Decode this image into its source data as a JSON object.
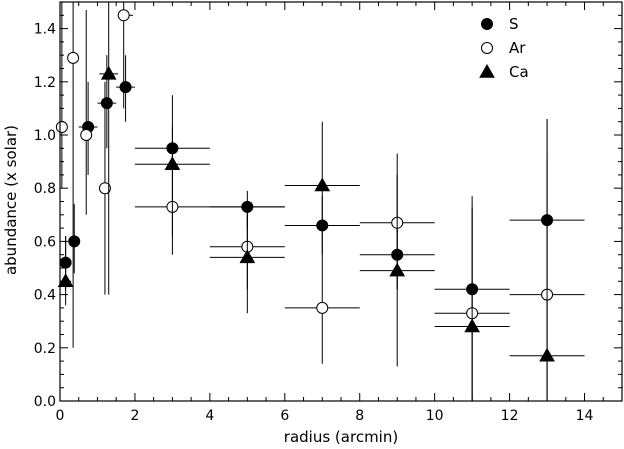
{
  "chart_data": {
    "type": "scatter",
    "xlabel": "radius (arcmin)",
    "ylabel": "abundance  (x solar)",
    "xlim": [
      0,
      15
    ],
    "ylim": [
      0,
      1.5
    ],
    "x_ticks": [
      "0",
      "2",
      "4",
      "6",
      "8",
      "10",
      "12",
      "14"
    ],
    "y_ticks": [
      "0.0",
      "0.2",
      "0.4",
      "0.6",
      "0.8",
      "1.0",
      "1.2",
      "1.4"
    ],
    "legend_position": "top-right",
    "series": [
      {
        "name": "S",
        "marker": "filled-circle",
        "points": [
          {
            "x": 0.15,
            "xlo": 0.0,
            "xhi": 0.3,
            "y": 0.52,
            "ylo": 0.42,
            "yhi": 0.62
          },
          {
            "x": 0.38,
            "xlo": 0.3,
            "xhi": 0.5,
            "y": 0.6,
            "ylo": 0.48,
            "yhi": 0.74
          },
          {
            "x": 0.75,
            "xlo": 0.5,
            "xhi": 1.0,
            "y": 1.03,
            "ylo": 0.85,
            "yhi": 1.2
          },
          {
            "x": 1.25,
            "xlo": 1.0,
            "xhi": 1.5,
            "y": 1.12,
            "ylo": 0.95,
            "yhi": 1.3
          },
          {
            "x": 1.75,
            "xlo": 1.5,
            "xhi": 2.0,
            "y": 1.18,
            "ylo": 1.05,
            "yhi": 1.3
          },
          {
            "x": 3.0,
            "xlo": 2.0,
            "xhi": 4.0,
            "y": 0.95,
            "ylo": 0.87,
            "yhi": 1.03
          },
          {
            "x": 5.0,
            "xlo": 4.0,
            "xhi": 6.0,
            "y": 0.73,
            "ylo": 0.65,
            "yhi": 0.79
          },
          {
            "x": 7.0,
            "xlo": 6.0,
            "xhi": 8.0,
            "y": 0.66,
            "ylo": 0.55,
            "yhi": 0.77
          },
          {
            "x": 9.0,
            "xlo": 8.0,
            "xhi": 10.0,
            "y": 0.55,
            "ylo": 0.42,
            "yhi": 0.66
          },
          {
            "x": 11.0,
            "xlo": 10.0,
            "xhi": 12.0,
            "y": 0.42,
            "ylo": 0.0,
            "yhi": 0.77
          },
          {
            "x": 13.0,
            "xlo": 12.0,
            "xhi": 14.0,
            "y": 0.68,
            "ylo": 0.0,
            "yhi": 1.06
          }
        ]
      },
      {
        "name": "Ar",
        "marker": "open-circle",
        "points": [
          {
            "x": 0.05,
            "xlo": 0.0,
            "xhi": 0.15,
            "y": 1.03,
            "ylo": 0.8,
            "yhi": 1.5
          },
          {
            "x": 0.35,
            "xlo": 0.25,
            "xhi": 0.45,
            "y": 1.29,
            "ylo": 0.2,
            "yhi": 1.5
          },
          {
            "x": 0.7,
            "xlo": 0.55,
            "xhi": 0.85,
            "y": 1.0,
            "ylo": 0.7,
            "yhi": 1.47
          },
          {
            "x": 1.2,
            "xlo": 1.05,
            "xhi": 1.35,
            "y": 0.8,
            "ylo": 0.4,
            "yhi": 1.2
          },
          {
            "x": 1.7,
            "xlo": 1.55,
            "xhi": 1.95,
            "y": 1.45,
            "ylo": 1.1,
            "yhi": 1.5
          },
          {
            "x": 3.0,
            "xlo": 2.0,
            "xhi": 6.0,
            "y": 0.73,
            "ylo": 0.55,
            "yhi": 0.92
          },
          {
            "x": 5.0,
            "xlo": 4.0,
            "xhi": 6.0,
            "y": 0.58,
            "ylo": 0.42,
            "yhi": 0.7
          },
          {
            "x": 7.0,
            "xlo": 6.0,
            "xhi": 8.0,
            "y": 0.35,
            "ylo": 0.14,
            "yhi": 0.56
          },
          {
            "x": 9.0,
            "xlo": 8.0,
            "xhi": 10.0,
            "y": 0.67,
            "ylo": 0.42,
            "yhi": 0.93
          },
          {
            "x": 11.0,
            "xlo": 10.0,
            "xhi": 12.0,
            "y": 0.33,
            "ylo": 0.0,
            "yhi": 0.73
          },
          {
            "x": 13.0,
            "xlo": 12.0,
            "xhi": 14.0,
            "y": 0.4,
            "ylo": 0.0,
            "yhi": 0.93
          }
        ]
      },
      {
        "name": "Ca",
        "marker": "filled-triangle",
        "points": [
          {
            "x": 0.15,
            "xlo": 0.0,
            "xhi": 0.3,
            "y": 0.45,
            "ylo": 0.36,
            "yhi": 0.62
          },
          {
            "x": 1.3,
            "xlo": 1.05,
            "xhi": 1.55,
            "y": 1.23,
            "ylo": 0.4,
            "yhi": 1.5
          },
          {
            "x": 3.0,
            "xlo": 2.0,
            "xhi": 4.0,
            "y": 0.89,
            "ylo": 0.62,
            "yhi": 1.15
          },
          {
            "x": 5.0,
            "xlo": 4.0,
            "xhi": 6.0,
            "y": 0.54,
            "ylo": 0.33,
            "yhi": 0.73
          },
          {
            "x": 7.0,
            "xlo": 6.0,
            "xhi": 8.0,
            "y": 0.81,
            "ylo": 0.56,
            "yhi": 1.05
          },
          {
            "x": 9.0,
            "xlo": 8.0,
            "xhi": 10.0,
            "y": 0.49,
            "ylo": 0.13,
            "yhi": 0.85
          },
          {
            "x": 11.0,
            "xlo": 10.0,
            "xhi": 12.0,
            "y": 0.28,
            "ylo": 0.0,
            "yhi": 0.72
          },
          {
            "x": 13.0,
            "xlo": 12.0,
            "xhi": 14.0,
            "y": 0.17,
            "ylo": 0.0,
            "yhi": 1.06
          }
        ]
      }
    ]
  },
  "colors": {
    "ink": "#000000",
    "background": "#ffffff"
  }
}
